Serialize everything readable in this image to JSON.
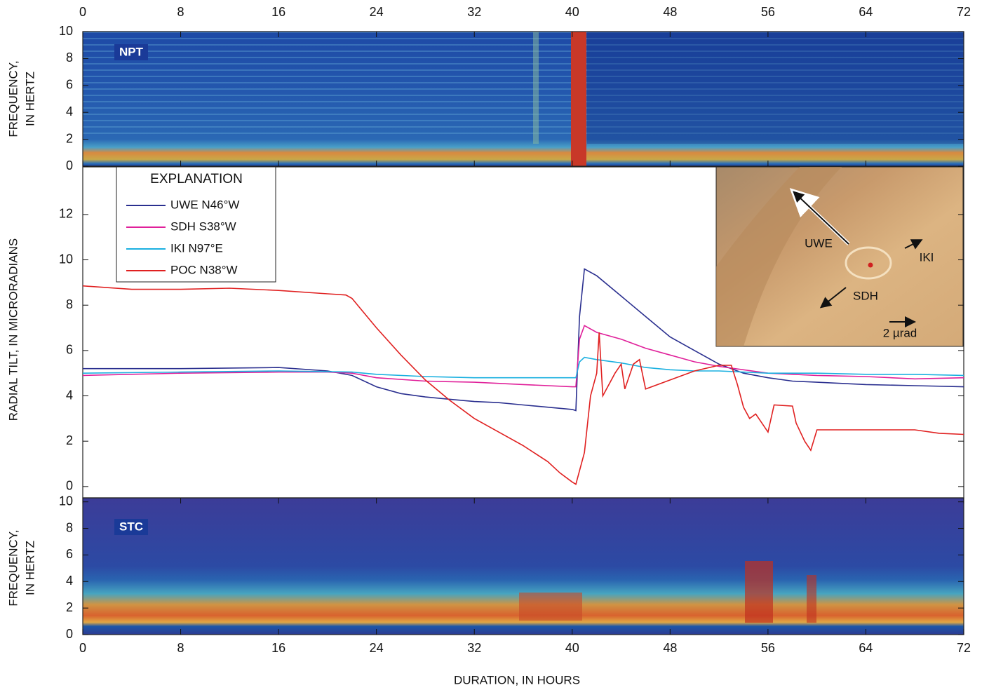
{
  "chart_data": [
    {
      "type": "spectrogram",
      "label": "NPT",
      "y_label": [
        "FREQUENCY,",
        "IN HERTZ"
      ],
      "xlim": [
        0,
        72
      ],
      "xticks": [
        0,
        8,
        16,
        24,
        32,
        40,
        48,
        56,
        64,
        72
      ],
      "ylim": [
        0,
        10
      ],
      "yticks": [
        0,
        2,
        4,
        6,
        8,
        10
      ]
    },
    {
      "type": "line",
      "y_label": "RADIAL TILT, IN MICRORADIANS",
      "legend_title": "EXPLANATION",
      "xlim": [
        0,
        72
      ],
      "ylim": [
        -0.5,
        14.1
      ],
      "yticks": [
        0,
        2,
        4,
        6,
        8,
        10,
        12
      ],
      "series": [
        {
          "name": "UWE N46°W",
          "color": "#2a2f8f",
          "x": [
            0,
            8,
            16,
            20,
            22,
            24,
            26,
            28,
            30,
            32,
            34,
            36,
            38,
            40,
            40.3,
            40.6,
            41,
            42,
            44,
            46,
            48,
            50,
            52,
            54,
            56,
            58,
            60,
            64,
            68,
            72
          ],
          "values": [
            5.2,
            5.2,
            5.25,
            5.1,
            4.9,
            4.4,
            4.1,
            3.95,
            3.85,
            3.75,
            3.7,
            3.6,
            3.5,
            3.4,
            3.35,
            7.5,
            9.6,
            9.3,
            8.4,
            7.5,
            6.6,
            6.0,
            5.4,
            5.0,
            4.8,
            4.65,
            4.6,
            4.5,
            4.45,
            4.4
          ]
        },
        {
          "name": "SDH S38°W",
          "color": "#e0209a",
          "x": [
            0,
            8,
            16,
            20,
            22,
            24,
            28,
            32,
            36,
            40,
            40.3,
            40.6,
            41,
            42,
            44,
            46,
            48,
            50,
            52,
            56,
            60,
            64,
            68,
            72
          ],
          "values": [
            4.9,
            5.0,
            5.05,
            5.05,
            5.0,
            4.8,
            4.65,
            4.6,
            4.5,
            4.4,
            4.4,
            6.5,
            7.1,
            6.8,
            6.5,
            6.1,
            5.8,
            5.5,
            5.3,
            5.0,
            4.9,
            4.85,
            4.75,
            4.8
          ]
        },
        {
          "name": "IKI N97°E",
          "color": "#1ab0e0",
          "x": [
            0,
            8,
            16,
            22,
            24,
            28,
            32,
            36,
            40,
            40.3,
            40.6,
            41,
            42,
            44,
            46,
            48,
            50,
            52,
            56,
            60,
            64,
            68,
            72
          ],
          "values": [
            5.0,
            5.05,
            5.1,
            5.05,
            4.95,
            4.85,
            4.8,
            4.8,
            4.8,
            4.8,
            5.5,
            5.7,
            5.6,
            5.45,
            5.25,
            5.15,
            5.1,
            5.1,
            5.0,
            5.0,
            4.95,
            4.95,
            4.9
          ]
        },
        {
          "name": "POC N38°W",
          "color": "#e02020",
          "x": [
            0,
            4,
            8,
            12,
            16,
            20,
            21.5,
            22,
            24,
            26,
            28,
            30,
            32,
            34,
            36,
            38,
            39,
            40,
            40.3,
            41,
            41.5,
            42,
            42.2,
            42.5,
            43.5,
            44,
            44.3,
            45,
            45.5,
            46,
            48,
            50,
            52,
            53,
            53.5,
            54,
            54.5,
            55,
            55.5,
            56,
            56.5,
            58,
            58.3,
            59,
            59.5,
            60,
            64,
            68,
            70,
            72
          ],
          "values": [
            8.85,
            8.7,
            8.7,
            8.75,
            8.65,
            8.5,
            8.45,
            8.3,
            7.0,
            5.8,
            4.7,
            3.8,
            3.0,
            2.4,
            1.8,
            1.1,
            0.6,
            0.2,
            0.1,
            1.5,
            4.0,
            5.0,
            6.8,
            4.0,
            5.0,
            5.4,
            4.3,
            5.4,
            5.6,
            4.3,
            4.7,
            5.1,
            5.35,
            5.35,
            4.5,
            3.5,
            3.0,
            3.2,
            2.8,
            2.4,
            3.6,
            3.55,
            2.8,
            2.0,
            1.6,
            2.5,
            2.5,
            2.5,
            2.35,
            2.3
          ]
        }
      ],
      "inset": {
        "labels": [
          "UWE",
          "IKI",
          "SDH"
        ],
        "scale_label": "2 µrad"
      }
    },
    {
      "type": "spectrogram",
      "label": "STC",
      "y_label": [
        "FREQUENCY,",
        "IN HERTZ"
      ],
      "x_label": "DURATION, IN HOURS",
      "xlim": [
        0,
        72
      ],
      "xticks": [
        0,
        8,
        16,
        24,
        32,
        40,
        48,
        56,
        64,
        72
      ],
      "ylim": [
        0,
        10.3
      ],
      "yticks": [
        0,
        2,
        4,
        6,
        8,
        10
      ]
    }
  ]
}
